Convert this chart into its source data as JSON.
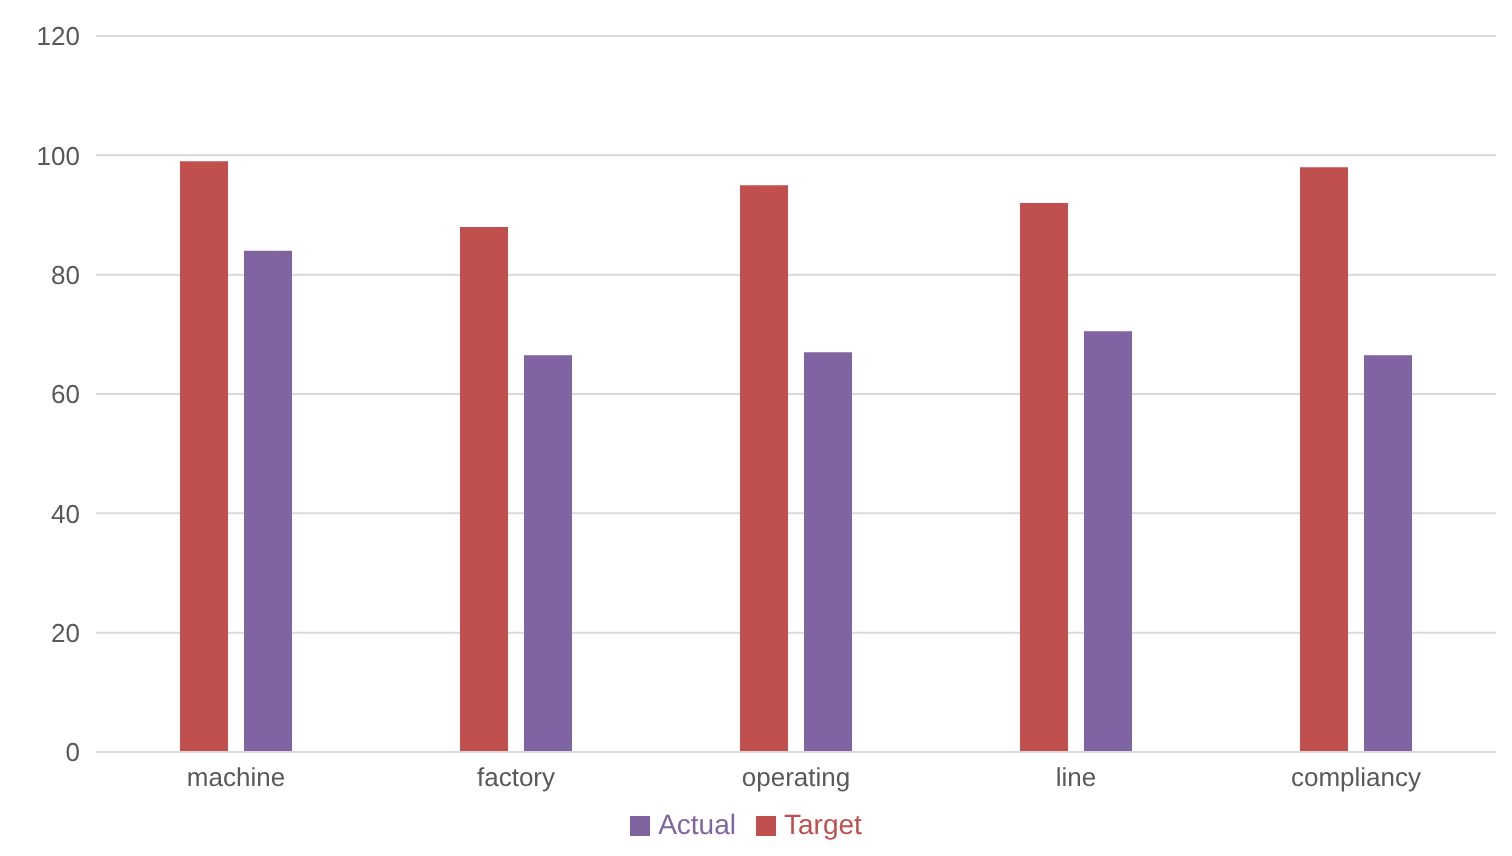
{
  "chart_data": {
    "type": "bar",
    "categories": [
      "machine",
      "factory",
      "operating",
      "line",
      "compliancy"
    ],
    "series": [
      {
        "name": "Target",
        "color": "#c0504d",
        "values": [
          99,
          88,
          95,
          92,
          98
        ]
      },
      {
        "name": "Actual",
        "color": "#8064a2",
        "values": [
          84,
          66.5,
          67,
          70.5,
          66.5
        ]
      }
    ],
    "ylim": [
      0,
      120
    ],
    "yticks": [
      0,
      20,
      40,
      60,
      80,
      100,
      120
    ],
    "grid": "y",
    "legend": "bottom"
  }
}
